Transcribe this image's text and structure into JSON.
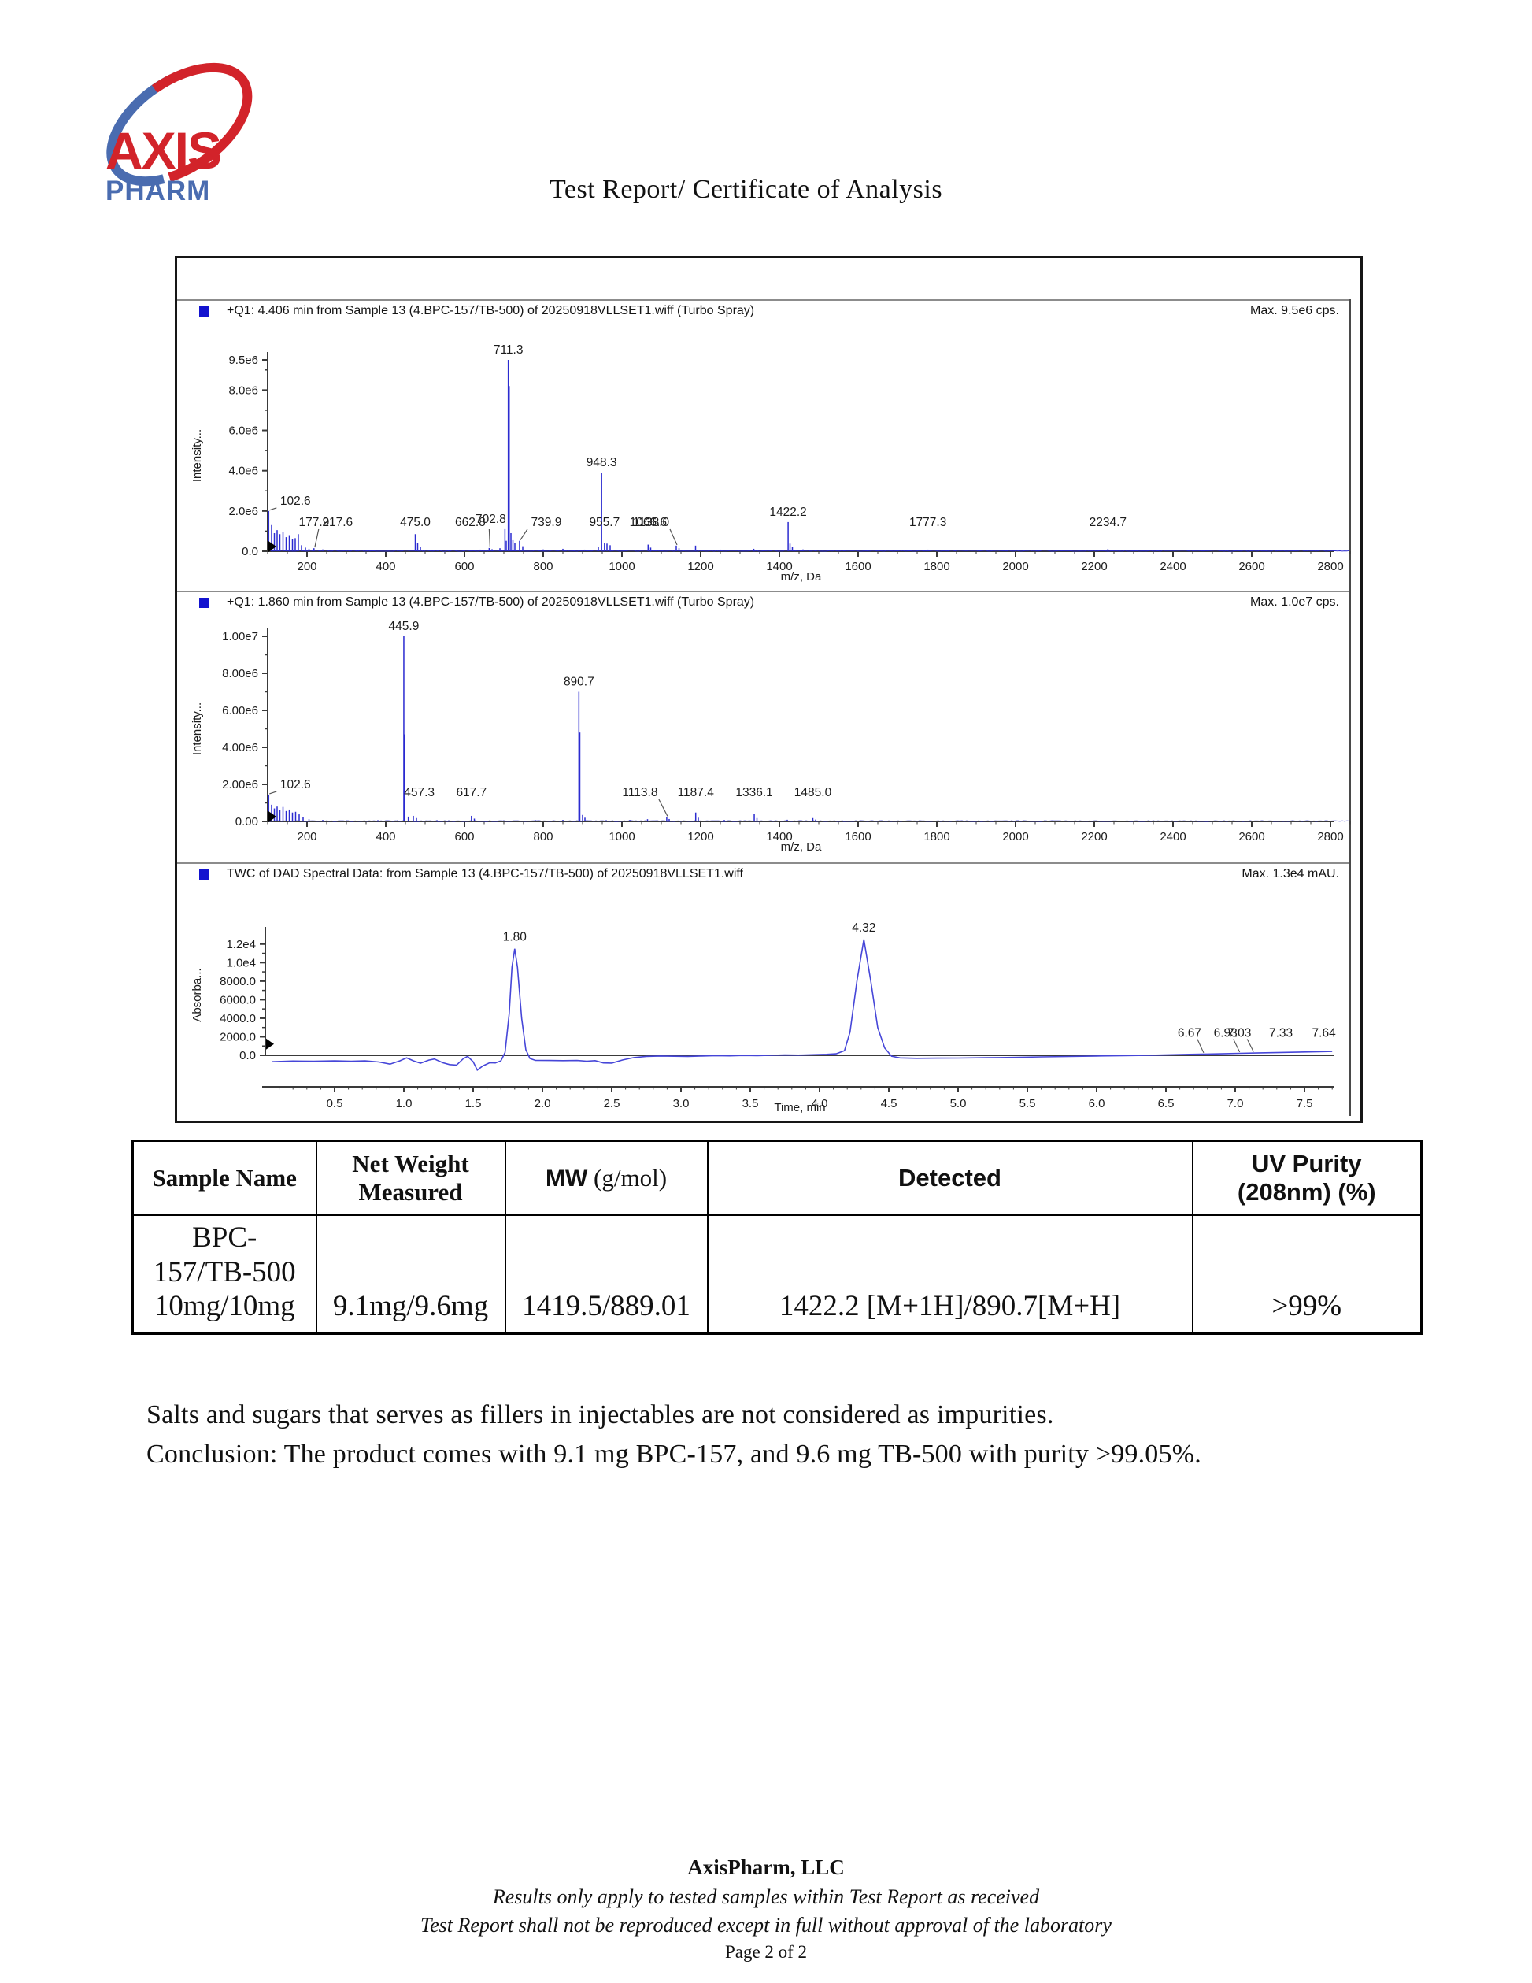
{
  "page": {
    "title": "Test Report/ Certificate of Analysis",
    "logo": {
      "brand_top": "AXIS",
      "brand_bottom": "PHARM",
      "red": "#d2232a",
      "blue": "#4a6cb0"
    }
  },
  "chart_data": [
    {
      "type": "bar",
      "kind": "mass_spectrum",
      "header": "+Q1: 4.406 min from Sample 13 (4.BPC-157/TB-500) of 20250918VLLSET1.wiff (Turbo Spray)",
      "max_label": "Max. 9.5e6 cps.",
      "ylabel": "Intensity...",
      "xlabel": "m/z, Da",
      "x_range": [
        100,
        2900
      ],
      "x_ticks": [
        200,
        400,
        600,
        800,
        1000,
        1200,
        1400,
        1600,
        1800,
        2000,
        2200,
        2400,
        2600,
        2800
      ],
      "x_minor_step": 50,
      "y_max": 9500000,
      "y_minor_step": 1000000,
      "y_ticks": [
        {
          "v": 0,
          "label": "0.0"
        },
        {
          "v": 2000000,
          "label": "2.0e6"
        },
        {
          "v": 4000000,
          "label": "4.0e6"
        },
        {
          "v": 6000000,
          "label": "6.0e6"
        },
        {
          "v": 8000000,
          "label": "8.0e6"
        },
        {
          "v": 9500000,
          "label": "9.5e6"
        }
      ],
      "noise_amp": 45000,
      "peaks": [
        {
          "mz": 102.6,
          "i": 2000000,
          "label": "102.6",
          "ldx": 34,
          "leader": true
        },
        {
          "mz": 110,
          "i": 1300000
        },
        {
          "mz": 117,
          "i": 900000
        },
        {
          "mz": 124,
          "i": 1050000
        },
        {
          "mz": 131,
          "i": 850000
        },
        {
          "mz": 139,
          "i": 950000
        },
        {
          "mz": 147,
          "i": 700000
        },
        {
          "mz": 155,
          "i": 800000
        },
        {
          "mz": 163,
          "i": 600000
        },
        {
          "mz": 170,
          "i": 650000
        },
        {
          "mz": 177.9,
          "i": 850000,
          "label": "177.9",
          "ldx": 20
        },
        {
          "mz": 186,
          "i": 300000
        },
        {
          "mz": 196,
          "i": 180000
        },
        {
          "mz": 205,
          "i": 120000
        },
        {
          "mz": 217.6,
          "i": 150000,
          "label": "217.6",
          "ldx": 30,
          "leader": true
        },
        {
          "mz": 240,
          "i": 90000
        },
        {
          "mz": 300,
          "i": 60000
        },
        {
          "mz": 360,
          "i": 50000
        },
        {
          "mz": 430,
          "i": 60000
        },
        {
          "mz": 475.0,
          "i": 850000,
          "label": "475.0"
        },
        {
          "mz": 481,
          "i": 420000
        },
        {
          "mz": 488,
          "i": 220000
        },
        {
          "mz": 540,
          "i": 60000
        },
        {
          "mz": 600,
          "i": 70000
        },
        {
          "mz": 640,
          "i": 80000
        },
        {
          "mz": 662.8,
          "i": 160000,
          "label": "662.8",
          "ldx": -24,
          "leader": true
        },
        {
          "mz": 670,
          "i": 100000
        },
        {
          "mz": 690,
          "i": 150000
        },
        {
          "mz": 702.8,
          "i": 1100000,
          "label": "702.8",
          "ldx": -18
        },
        {
          "mz": 706,
          "i": 520000
        },
        {
          "mz": 711.3,
          "i": 9500000,
          "label": "711.3"
        },
        {
          "mz": 713.5,
          "i": 8200000
        },
        {
          "mz": 718,
          "i": 900000
        },
        {
          "mz": 723,
          "i": 550000
        },
        {
          "mz": 728,
          "i": 400000
        },
        {
          "mz": 739.9,
          "i": 520000,
          "label": "739.9",
          "ldx": 34,
          "leader": true
        },
        {
          "mz": 748,
          "i": 250000
        },
        {
          "mz": 800,
          "i": 90000
        },
        {
          "mz": 850,
          "i": 120000
        },
        {
          "mz": 905,
          "i": 80000
        },
        {
          "mz": 940,
          "i": 200000
        },
        {
          "mz": 948.3,
          "i": 3900000,
          "label": "948.3"
        },
        {
          "mz": 955.7,
          "i": 420000,
          "label": "955.7"
        },
        {
          "mz": 962,
          "i": 380000
        },
        {
          "mz": 970,
          "i": 300000
        },
        {
          "mz": 1066.6,
          "i": 330000,
          "label": "1066.6"
        },
        {
          "mz": 1073,
          "i": 180000
        },
        {
          "mz": 1138.0,
          "i": 280000,
          "label": "1138.0",
          "ldx": -32,
          "leader": true
        },
        {
          "mz": 1145,
          "i": 150000
        },
        {
          "mz": 1187,
          "i": 280000
        },
        {
          "mz": 1250,
          "i": 80000
        },
        {
          "mz": 1335,
          "i": 120000
        },
        {
          "mz": 1422.2,
          "i": 1450000,
          "label": "1422.2"
        },
        {
          "mz": 1427,
          "i": 380000
        },
        {
          "mz": 1433,
          "i": 200000
        },
        {
          "mz": 1460,
          "i": 90000
        },
        {
          "mz": 1710,
          "i": 60000
        },
        {
          "mz": 1777.3,
          "i": 80000,
          "label": "1777.3"
        },
        {
          "mz": 1830,
          "i": 60000
        },
        {
          "mz": 2040,
          "i": 50000
        },
        {
          "mz": 2140,
          "i": 60000
        },
        {
          "mz": 2234.7,
          "i": 110000,
          "label": "2234.7"
        },
        {
          "mz": 2300,
          "i": 50000
        },
        {
          "mz": 2450,
          "i": 40000
        },
        {
          "mz": 2600,
          "i": 50000
        },
        {
          "mz": 2700,
          "i": 40000
        }
      ]
    },
    {
      "type": "bar",
      "kind": "mass_spectrum",
      "header": "+Q1: 1.860 min from Sample 13 (4.BPC-157/TB-500) of 20250918VLLSET1.wiff (Turbo Spray)",
      "max_label": "Max. 1.0e7 cps.",
      "ylabel": "Intensity...",
      "xlabel": "m/z, Da",
      "x_range": [
        100,
        2900
      ],
      "x_ticks": [
        200,
        400,
        600,
        800,
        1000,
        1200,
        1400,
        1600,
        1800,
        2000,
        2200,
        2400,
        2600,
        2800
      ],
      "x_minor_step": 50,
      "y_max": 10000000,
      "y_minor_step": 1000000,
      "y_ticks": [
        {
          "v": 0,
          "label": "0.00"
        },
        {
          "v": 2000000,
          "label": "2.00e6"
        },
        {
          "v": 4000000,
          "label": "4.00e6"
        },
        {
          "v": 6000000,
          "label": "6.00e6"
        },
        {
          "v": 8000000,
          "label": "8.00e6"
        },
        {
          "v": 10000000,
          "label": "1.00e7"
        }
      ],
      "noise_amp": 40000,
      "peaks": [
        {
          "mz": 102.6,
          "i": 1450000,
          "label": "102.6",
          "ldx": 34,
          "leader": true
        },
        {
          "mz": 110,
          "i": 900000
        },
        {
          "mz": 117,
          "i": 700000
        },
        {
          "mz": 124,
          "i": 800000
        },
        {
          "mz": 131,
          "i": 620000
        },
        {
          "mz": 139,
          "i": 780000
        },
        {
          "mz": 147,
          "i": 560000
        },
        {
          "mz": 155,
          "i": 640000
        },
        {
          "mz": 163,
          "i": 480000
        },
        {
          "mz": 171,
          "i": 520000
        },
        {
          "mz": 180,
          "i": 380000
        },
        {
          "mz": 190,
          "i": 250000
        },
        {
          "mz": 205,
          "i": 120000
        },
        {
          "mz": 240,
          "i": 80000
        },
        {
          "mz": 300,
          "i": 60000
        },
        {
          "mz": 380,
          "i": 70000
        },
        {
          "mz": 430,
          "i": 60000
        },
        {
          "mz": 445.9,
          "i": 10000000,
          "label": "445.9"
        },
        {
          "mz": 448,
          "i": 4700000
        },
        {
          "mz": 457.3,
          "i": 260000,
          "label": "457.3",
          "ldx": 14
        },
        {
          "mz": 470,
          "i": 300000
        },
        {
          "mz": 478,
          "i": 180000
        },
        {
          "mz": 530,
          "i": 70000
        },
        {
          "mz": 560,
          "i": 60000
        },
        {
          "mz": 617.7,
          "i": 300000,
          "label": "617.7"
        },
        {
          "mz": 625,
          "i": 150000
        },
        {
          "mz": 700,
          "i": 60000
        },
        {
          "mz": 780,
          "i": 70000
        },
        {
          "mz": 850,
          "i": 80000
        },
        {
          "mz": 890.7,
          "i": 7000000,
          "label": "890.7"
        },
        {
          "mz": 893,
          "i": 4800000
        },
        {
          "mz": 900,
          "i": 350000
        },
        {
          "mz": 906,
          "i": 200000
        },
        {
          "mz": 960,
          "i": 70000
        },
        {
          "mz": 1020,
          "i": 80000
        },
        {
          "mz": 1065,
          "i": 120000
        },
        {
          "mz": 1113.8,
          "i": 240000,
          "label": "1113.8",
          "ldx": -34,
          "leader": true
        },
        {
          "mz": 1120,
          "i": 130000
        },
        {
          "mz": 1187.4,
          "i": 480000,
          "label": "1187.4"
        },
        {
          "mz": 1194,
          "i": 200000
        },
        {
          "mz": 1260,
          "i": 80000
        },
        {
          "mz": 1336.1,
          "i": 420000,
          "label": "1336.1"
        },
        {
          "mz": 1343,
          "i": 180000
        },
        {
          "mz": 1420,
          "i": 90000
        },
        {
          "mz": 1485.0,
          "i": 180000,
          "label": "1485.0"
        },
        {
          "mz": 1492,
          "i": 100000
        },
        {
          "mz": 1560,
          "i": 50000
        },
        {
          "mz": 1700,
          "i": 40000
        },
        {
          "mz": 1900,
          "i": 40000
        },
        {
          "mz": 2100,
          "i": 40000
        },
        {
          "mz": 2400,
          "i": 40000
        },
        {
          "mz": 2600,
          "i": 40000
        }
      ]
    },
    {
      "type": "line",
      "kind": "chromatogram",
      "header": "TWC of DAD Spectral Data: from Sample 13 (4.BPC-157/TB-500) of 20250918VLLSET1.wiff",
      "max_label": "Max. 1.3e4 mAU.",
      "ylabel": "Absorba...",
      "xlabel": "Time, min",
      "x_range": [
        0,
        7.9
      ],
      "x_ticks": [
        {
          "v": 0.5,
          "label": "0.5"
        },
        {
          "v": 1.0,
          "label": "1.0"
        },
        {
          "v": 1.5,
          "label": "1.5"
        },
        {
          "v": 2.0,
          "label": "2.0"
        },
        {
          "v": 2.5,
          "label": "2.5"
        },
        {
          "v": 3.0,
          "label": "3.0"
        },
        {
          "v": 3.5,
          "label": "3.5"
        },
        {
          "v": 4.0,
          "label": "4.0"
        },
        {
          "v": 4.5,
          "label": "4.5"
        },
        {
          "v": 5.0,
          "label": "5.0"
        },
        {
          "v": 5.5,
          "label": "5.5"
        },
        {
          "v": 6.0,
          "label": "6.0"
        },
        {
          "v": 6.5,
          "label": "6.5"
        },
        {
          "v": 7.0,
          "label": "7.0"
        },
        {
          "v": 7.5,
          "label": "7.5"
        }
      ],
      "x_minor_step": 0.1,
      "y_max": 13000,
      "y_minor_step": 1000,
      "y_ticks": [
        {
          "v": 0,
          "label": "0.0"
        },
        {
          "v": 2000,
          "label": "2000.0"
        },
        {
          "v": 4000,
          "label": "4000.0"
        },
        {
          "v": 6000,
          "label": "6000.0"
        },
        {
          "v": 8000,
          "label": "8000.0"
        },
        {
          "v": 10000,
          "label": "1.0e4"
        },
        {
          "v": 12000,
          "label": "1.2e4"
        }
      ],
      "curve": [
        [
          0.05,
          -700
        ],
        [
          0.2,
          -620
        ],
        [
          0.35,
          -650
        ],
        [
          0.5,
          -600
        ],
        [
          0.62,
          -640
        ],
        [
          0.72,
          -600
        ],
        [
          0.82,
          -720
        ],
        [
          0.9,
          -950
        ],
        [
          0.97,
          -600
        ],
        [
          1.02,
          -280
        ],
        [
          1.07,
          -600
        ],
        [
          1.12,
          -850
        ],
        [
          1.18,
          -520
        ],
        [
          1.22,
          -400
        ],
        [
          1.28,
          -800
        ],
        [
          1.33,
          -1000
        ],
        [
          1.38,
          -1050
        ],
        [
          1.43,
          -350
        ],
        [
          1.46,
          -120
        ],
        [
          1.5,
          -700
        ],
        [
          1.53,
          -1600
        ],
        [
          1.57,
          -1150
        ],
        [
          1.62,
          -800
        ],
        [
          1.66,
          -820
        ],
        [
          1.7,
          -600
        ],
        [
          1.73,
          300
        ],
        [
          1.76,
          4500
        ],
        [
          1.78,
          9500
        ],
        [
          1.8,
          11500
        ],
        [
          1.82,
          9500
        ],
        [
          1.85,
          4000
        ],
        [
          1.88,
          600
        ],
        [
          1.91,
          -350
        ],
        [
          1.95,
          -550
        ],
        [
          2.05,
          -560
        ],
        [
          2.15,
          -580
        ],
        [
          2.25,
          -560
        ],
        [
          2.32,
          -640
        ],
        [
          2.38,
          -580
        ],
        [
          2.44,
          -820
        ],
        [
          2.5,
          -840
        ],
        [
          2.58,
          -500
        ],
        [
          2.66,
          -250
        ],
        [
          2.75,
          -120
        ],
        [
          2.85,
          -80
        ],
        [
          2.95,
          -100
        ],
        [
          3.05,
          -120
        ],
        [
          3.15,
          -80
        ],
        [
          3.25,
          -40
        ],
        [
          3.35,
          -60
        ],
        [
          3.45,
          -20
        ],
        [
          3.55,
          -40
        ],
        [
          3.65,
          0
        ],
        [
          3.75,
          30
        ],
        [
          3.85,
          20
        ],
        [
          3.95,
          60
        ],
        [
          4.05,
          100
        ],
        [
          4.12,
          160
        ],
        [
          4.18,
          500
        ],
        [
          4.22,
          2500
        ],
        [
          4.27,
          8000
        ],
        [
          4.32,
          12500
        ],
        [
          4.37,
          8000
        ],
        [
          4.42,
          3000
        ],
        [
          4.47,
          800
        ],
        [
          4.52,
          -100
        ],
        [
          4.58,
          -280
        ],
        [
          4.7,
          -320
        ],
        [
          4.85,
          -310
        ],
        [
          5.0,
          -300
        ],
        [
          5.2,
          -260
        ],
        [
          5.4,
          -230
        ],
        [
          5.6,
          -170
        ],
        [
          5.8,
          -130
        ],
        [
          6.0,
          -80
        ],
        [
          6.2,
          -40
        ],
        [
          6.4,
          10
        ],
        [
          6.55,
          60
        ],
        [
          6.67,
          100
        ],
        [
          6.8,
          140
        ],
        [
          6.93,
          180
        ],
        [
          7.03,
          210
        ],
        [
          7.18,
          260
        ],
        [
          7.33,
          310
        ],
        [
          7.5,
          360
        ],
        [
          7.64,
          400
        ],
        [
          7.7,
          415
        ]
      ],
      "peak_labels": [
        {
          "t": 1.8,
          "label": "1.80",
          "big": true
        },
        {
          "t": 4.32,
          "label": "4.32",
          "big": true
        },
        {
          "t": 6.67,
          "label": "6.67",
          "leader": true
        },
        {
          "t": 6.93,
          "label": "6.93",
          "leader": true
        },
        {
          "t": 7.03,
          "label": "7.03",
          "leader": true
        },
        {
          "t": 7.33,
          "label": "7.33"
        },
        {
          "t": 7.64,
          "label": "7.64"
        }
      ]
    }
  ],
  "table": {
    "headers": [
      {
        "text": "Sample Name"
      },
      {
        "text": "Net Weight\nMeasured"
      },
      {
        "text_sans": "MW",
        "text_serif": " (g/mol)"
      },
      {
        "text": "Detected"
      },
      {
        "text": "UV Purity\n(208nm) (%)"
      }
    ],
    "row": {
      "sample_name": "BPC-\n157/TB-500\n10mg/10mg",
      "net_weight": "9.1mg/9.6mg",
      "mw": "1419.5/889.01",
      "detected": "1422.2 [M+1H]/890.7[M+H]",
      "uv_purity": ">99%"
    }
  },
  "notes": {
    "line1": "Salts and sugars that serves as fillers in injectables are not considered as impurities.",
    "line2": "Conclusion: The product comes with 9.1 mg BPC-157, and 9.6 mg TB-500 with purity >99.05%."
  },
  "footer": {
    "company": "AxisPharm, LLC",
    "line1": "Results only apply to tested samples within Test Report as received",
    "line2": "Test Report shall not be reproduced except in full without approval of the laboratory",
    "page": "Page 2 of 2"
  }
}
